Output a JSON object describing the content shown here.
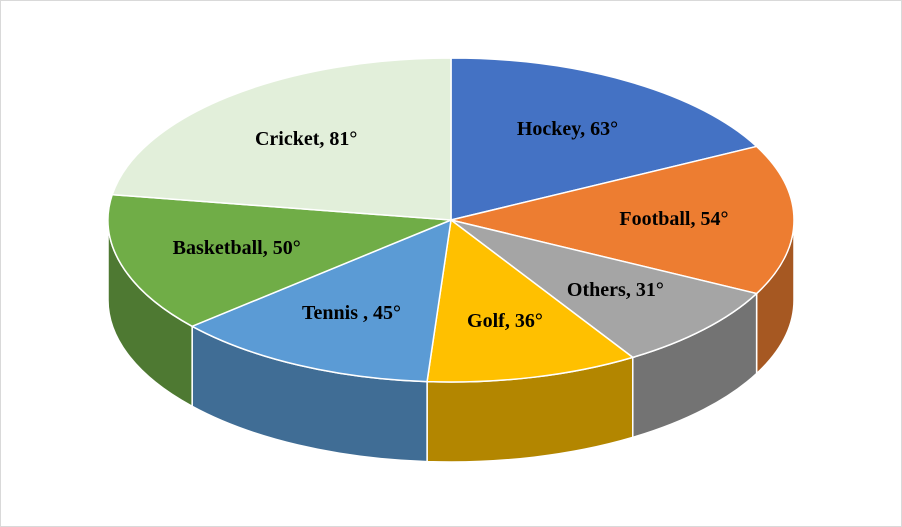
{
  "chart_data": {
    "type": "pie3d",
    "categories": [
      "Hockey",
      "Football",
      "Others",
      "Golf",
      "Tennis ",
      "Basketball",
      "Cricket"
    ],
    "values": [
      63,
      54,
      31,
      36,
      45,
      50,
      81
    ],
    "value_labels": [
      "63°",
      "54°",
      "31°",
      "36°",
      "45°",
      "50°",
      "81°"
    ],
    "label_separator": ", ",
    "colors": [
      "#4472c4",
      "#ed7d31",
      "#a5a5a5",
      "#ffc000",
      "#5b9bd5",
      "#70ad47",
      "#e2efda"
    ]
  }
}
